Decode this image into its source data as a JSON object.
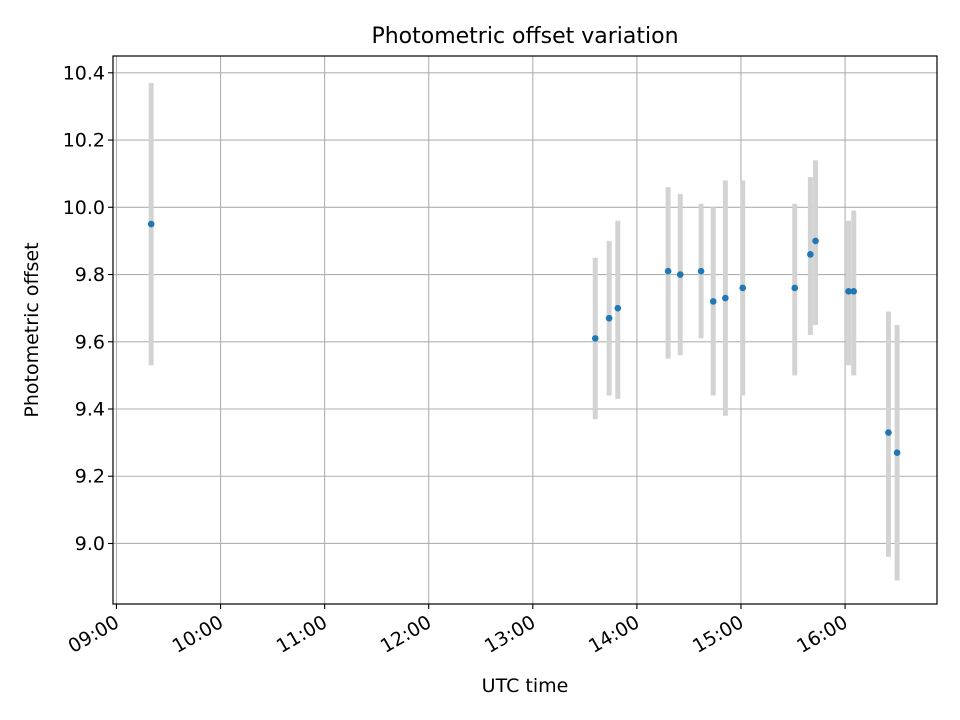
{
  "chart_data": {
    "type": "scatter",
    "title": "Photometric offset variation",
    "xlabel": "UTC time",
    "ylabel": "Photometric offset",
    "grid": true,
    "xlim": [
      "08:58",
      "16:53"
    ],
    "ylim": [
      8.82,
      10.45
    ],
    "xtick_labels": [
      "09:00",
      "10:00",
      "11:00",
      "12:00",
      "13:00",
      "14:00",
      "15:00",
      "16:00"
    ],
    "ytick_values": [
      9.0,
      9.2,
      9.4,
      9.6,
      9.8,
      10.0,
      10.2,
      10.4
    ],
    "ytick_labels": [
      "9.0",
      "9.2",
      "9.4",
      "9.6",
      "9.8",
      "10.0",
      "10.2",
      "10.4"
    ],
    "marker_color": "#1f77b4",
    "errorbar_color": "#d3d3d3",
    "series": [
      {
        "name": "Photometric offset",
        "points": [
          {
            "x": "09:20",
            "y": 9.95,
            "ylow": 9.53,
            "yhigh": 10.37
          },
          {
            "x": "13:36",
            "y": 9.61,
            "ylow": 9.37,
            "yhigh": 9.85
          },
          {
            "x": "13:44",
            "y": 9.67,
            "ylow": 9.44,
            "yhigh": 9.9
          },
          {
            "x": "13:49",
            "y": 9.7,
            "ylow": 9.43,
            "yhigh": 9.96
          },
          {
            "x": "14:18",
            "y": 9.81,
            "ylow": 9.55,
            "yhigh": 10.06
          },
          {
            "x": "14:25",
            "y": 9.8,
            "ylow": 9.56,
            "yhigh": 10.04
          },
          {
            "x": "14:37",
            "y": 9.81,
            "ylow": 9.61,
            "yhigh": 10.01
          },
          {
            "x": "14:44",
            "y": 9.72,
            "ylow": 9.44,
            "yhigh": 10.0
          },
          {
            "x": "14:51",
            "y": 9.73,
            "ylow": 9.38,
            "yhigh": 10.08
          },
          {
            "x": "15:01",
            "y": 9.76,
            "ylow": 9.44,
            "yhigh": 10.08
          },
          {
            "x": "15:31",
            "y": 9.76,
            "ylow": 9.5,
            "yhigh": 10.01
          },
          {
            "x": "15:40",
            "y": 9.86,
            "ylow": 9.62,
            "yhigh": 10.09
          },
          {
            "x": "15:43",
            "y": 9.9,
            "ylow": 9.65,
            "yhigh": 10.14
          },
          {
            "x": "16:02",
            "y": 9.75,
            "ylow": 9.53,
            "yhigh": 9.96
          },
          {
            "x": "16:05",
            "y": 9.75,
            "ylow": 9.5,
            "yhigh": 9.99
          },
          {
            "x": "16:25",
            "y": 9.33,
            "ylow": 8.96,
            "yhigh": 9.69
          },
          {
            "x": "16:30",
            "y": 9.27,
            "ylow": 8.89,
            "yhigh": 9.65
          }
        ]
      }
    ]
  }
}
